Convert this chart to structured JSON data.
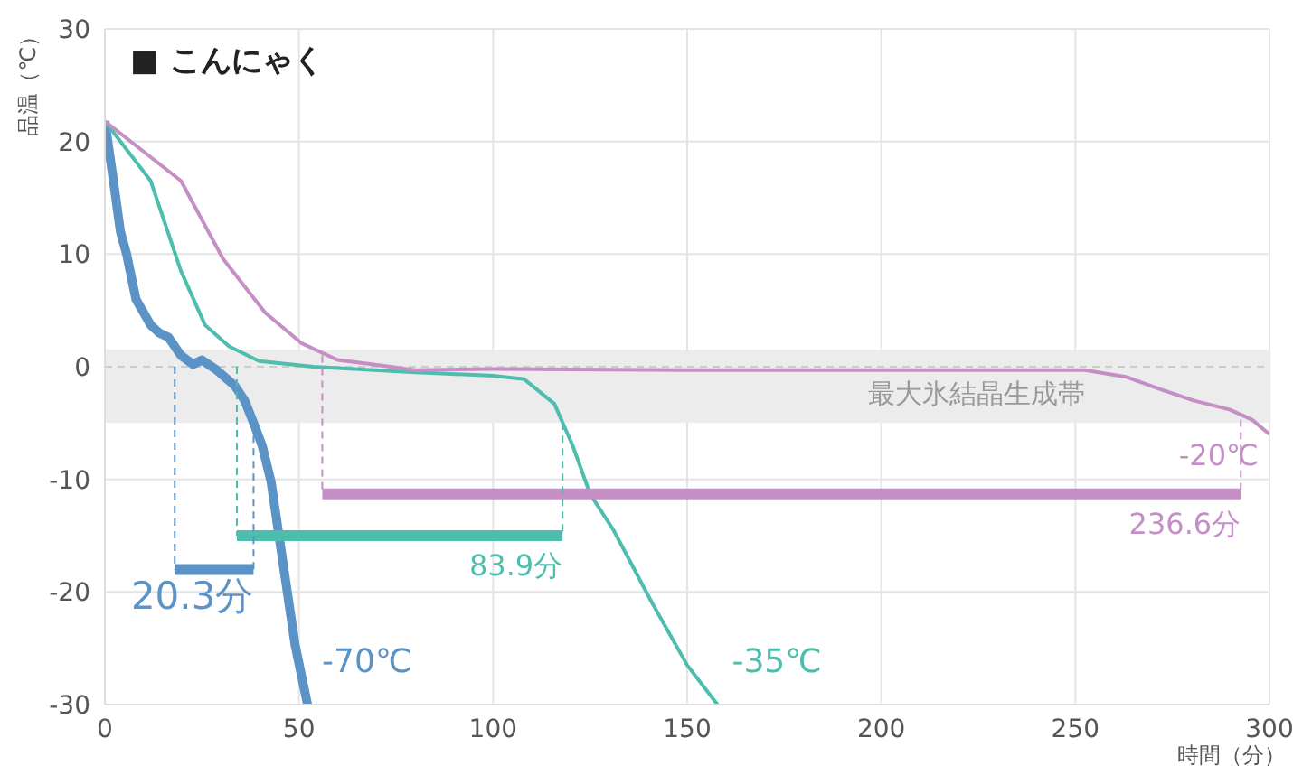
{
  "chart_data": {
    "type": "line",
    "title": "■ こんにゃく",
    "xlabel": "時間（分）",
    "ylabel": "品温（℃）",
    "xlim": [
      0,
      300
    ],
    "xticks": [
      0,
      50,
      100,
      150,
      200,
      250,
      300
    ],
    "ylim": [
      -30,
      30
    ],
    "yticks": [
      -30,
      -20,
      -10,
      0,
      10,
      20,
      30
    ],
    "grid": true,
    "series": [
      {
        "name": "-70℃",
        "color": "#5b93c7",
        "x": [
          0,
          2,
          4,
          5.6,
          8,
          11.8,
          14,
          16.4,
          19.6,
          22.7,
          25,
          28.8,
          33.5,
          36,
          38.2,
          40.5,
          42.8,
          46,
          49,
          52.2
        ],
        "values": [
          21.8,
          17,
          12,
          10,
          6,
          3.7,
          3,
          2.6,
          1,
          0.2,
          0.6,
          -0.3,
          -1.7,
          -3,
          -4.9,
          -7,
          -10.2,
          -17.7,
          -24.7,
          -30
        ]
      },
      {
        "name": "-35℃",
        "color": "#4dbdae",
        "x": [
          0,
          11.8,
          19.6,
          25.8,
          32,
          39.7,
          53.7,
          80,
          100,
          108,
          115.8,
          120.5,
          125,
          131,
          141,
          150,
          157.8
        ],
        "values": [
          21.8,
          16.5,
          8.5,
          3.7,
          1.8,
          0.5,
          0,
          -0.5,
          -0.8,
          -1.1,
          -3.3,
          -7,
          -11.3,
          -14.5,
          -21,
          -26.5,
          -30
        ]
      },
      {
        "name": "-20℃",
        "color": "#c58fc6",
        "x": [
          0,
          19.6,
          30.4,
          41.3,
          50.6,
          59.9,
          69.2,
          80,
          100,
          150,
          200,
          252.4,
          263,
          271,
          280.4,
          289.7,
          295.5,
          300
        ],
        "values": [
          21.8,
          16.5,
          9.6,
          4.8,
          2.1,
          0.6,
          0.2,
          -0.3,
          -0.2,
          -0.3,
          -0.3,
          -0.3,
          -0.9,
          -1.9,
          -3,
          -3.8,
          -4.7,
          -6
        ]
      },
      {
        "name": "20.3分",
        "color": "#5b93c7",
        "x": [
          18,
          38.3
        ],
        "values": [
          -18,
          -18
        ]
      },
      {
        "name": "83.9分",
        "color": "#4dbdae",
        "x": [
          34,
          117.9
        ],
        "values": [
          -15,
          -15
        ]
      },
      {
        "name": "236.6分",
        "color": "#c58fc6",
        "x": [
          56,
          292.6
        ],
        "values": [
          -11.3,
          -11.3
        ]
      },
      {
        "color": "#5b93c7",
        "line_style": "dashed",
        "x": [
          18,
          18
        ],
        "values": [
          0,
          -18
        ]
      },
      {
        "color": "#5b93c7",
        "line_style": "dashed",
        "x": [
          38.3,
          38.3
        ],
        "values": [
          -5,
          -18
        ]
      },
      {
        "color": "#4dbdae",
        "line_style": "dashed",
        "x": [
          34,
          34
        ],
        "values": [
          0,
          -15
        ]
      },
      {
        "color": "#4dbdae",
        "line_style": "dashed",
        "x": [
          117.9,
          117.9
        ],
        "values": [
          -5,
          -15
        ]
      },
      {
        "color": "#c58fc6",
        "line_style": "dashed",
        "x": [
          56,
          56
        ],
        "values": [
          1,
          -11.3
        ]
      },
      {
        "color": "#c58fc6",
        "line_style": "dashed",
        "x": [
          292.6,
          292.6
        ],
        "values": [
          -4.7,
          -11.3
        ]
      }
    ],
    "ref_lines": [
      {
        "axis": "y",
        "value": 0,
        "color": "#cccccc",
        "line_style": "dashed"
      }
    ],
    "bands": [
      {
        "axis": "y",
        "from": -5,
        "to": 1.5,
        "label": "最大氷結晶生成帯",
        "color": "#ececec"
      }
    ]
  }
}
